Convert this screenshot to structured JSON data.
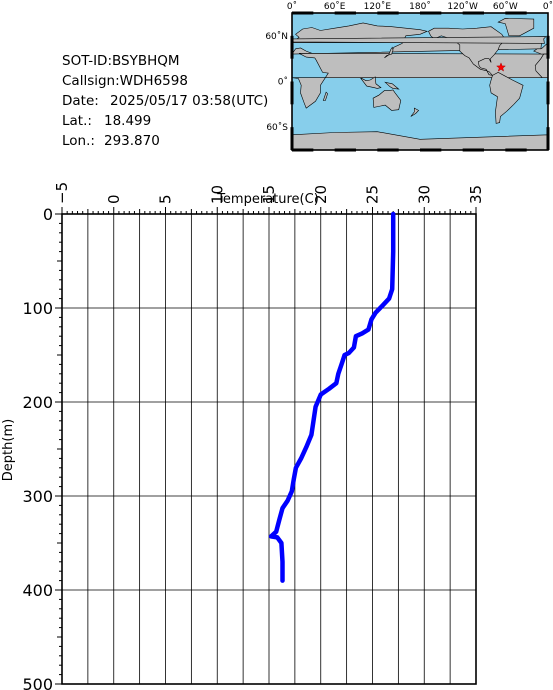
{
  "metadata": {
    "sot_id_label": "SOT-ID:",
    "sot_id": "BSYBHQM",
    "callsign_label": "Callsign:",
    "callsign": "WDH6598",
    "date_label": "Date:",
    "date": "2025/05/17 03:58(UTC)",
    "lat_label": "Lat.:",
    "lat": "18.499",
    "lon_label": "Lon.:",
    "lon": "293.870"
  },
  "map": {
    "x_ticks": [
      "0˚",
      "60˚E",
      "120˚E",
      "180˚",
      "120˚W",
      "60˚W",
      "0˚"
    ],
    "y_ticks": [
      "60˚N",
      "0˚",
      "60˚S"
    ],
    "ocean_color": "#87ceeb",
    "land_color": "#bebebe",
    "marker_color": "#ff0000"
  },
  "chart_data": {
    "type": "line",
    "xlabel": "Temperature(C)",
    "ylabel": "Depth(m)",
    "xlim": [
      -5,
      35
    ],
    "ylim": [
      500,
      0
    ],
    "x_ticks": [
      "−5",
      "0",
      "5",
      "10",
      "15",
      "20",
      "25",
      "30",
      "35"
    ],
    "y_ticks": [
      "0",
      "100",
      "200",
      "300",
      "400",
      "500"
    ],
    "grid": true,
    "series": [
      {
        "color": "#0000ff",
        "points": [
          [
            27.0,
            0
          ],
          [
            27.0,
            40
          ],
          [
            26.9,
            80
          ],
          [
            26.6,
            90
          ],
          [
            26.0,
            97
          ],
          [
            25.3,
            105
          ],
          [
            24.9,
            112
          ],
          [
            24.6,
            123
          ],
          [
            24.0,
            127
          ],
          [
            23.4,
            130
          ],
          [
            23.2,
            142
          ],
          [
            22.7,
            148
          ],
          [
            22.3,
            150
          ],
          [
            22.0,
            160
          ],
          [
            21.7,
            170
          ],
          [
            21.5,
            180
          ],
          [
            20.8,
            186
          ],
          [
            20.0,
            192
          ],
          [
            19.5,
            205
          ],
          [
            19.3,
            220
          ],
          [
            19.1,
            235
          ],
          [
            18.6,
            248
          ],
          [
            18.1,
            260
          ],
          [
            17.6,
            270
          ],
          [
            17.4,
            282
          ],
          [
            17.2,
            295
          ],
          [
            16.8,
            305
          ],
          [
            16.3,
            313
          ],
          [
            16.0,
            325
          ],
          [
            15.7,
            338
          ],
          [
            15.2,
            343
          ],
          [
            15.8,
            344
          ],
          [
            16.2,
            350
          ],
          [
            16.3,
            370
          ],
          [
            16.3,
            390
          ]
        ]
      }
    ]
  }
}
